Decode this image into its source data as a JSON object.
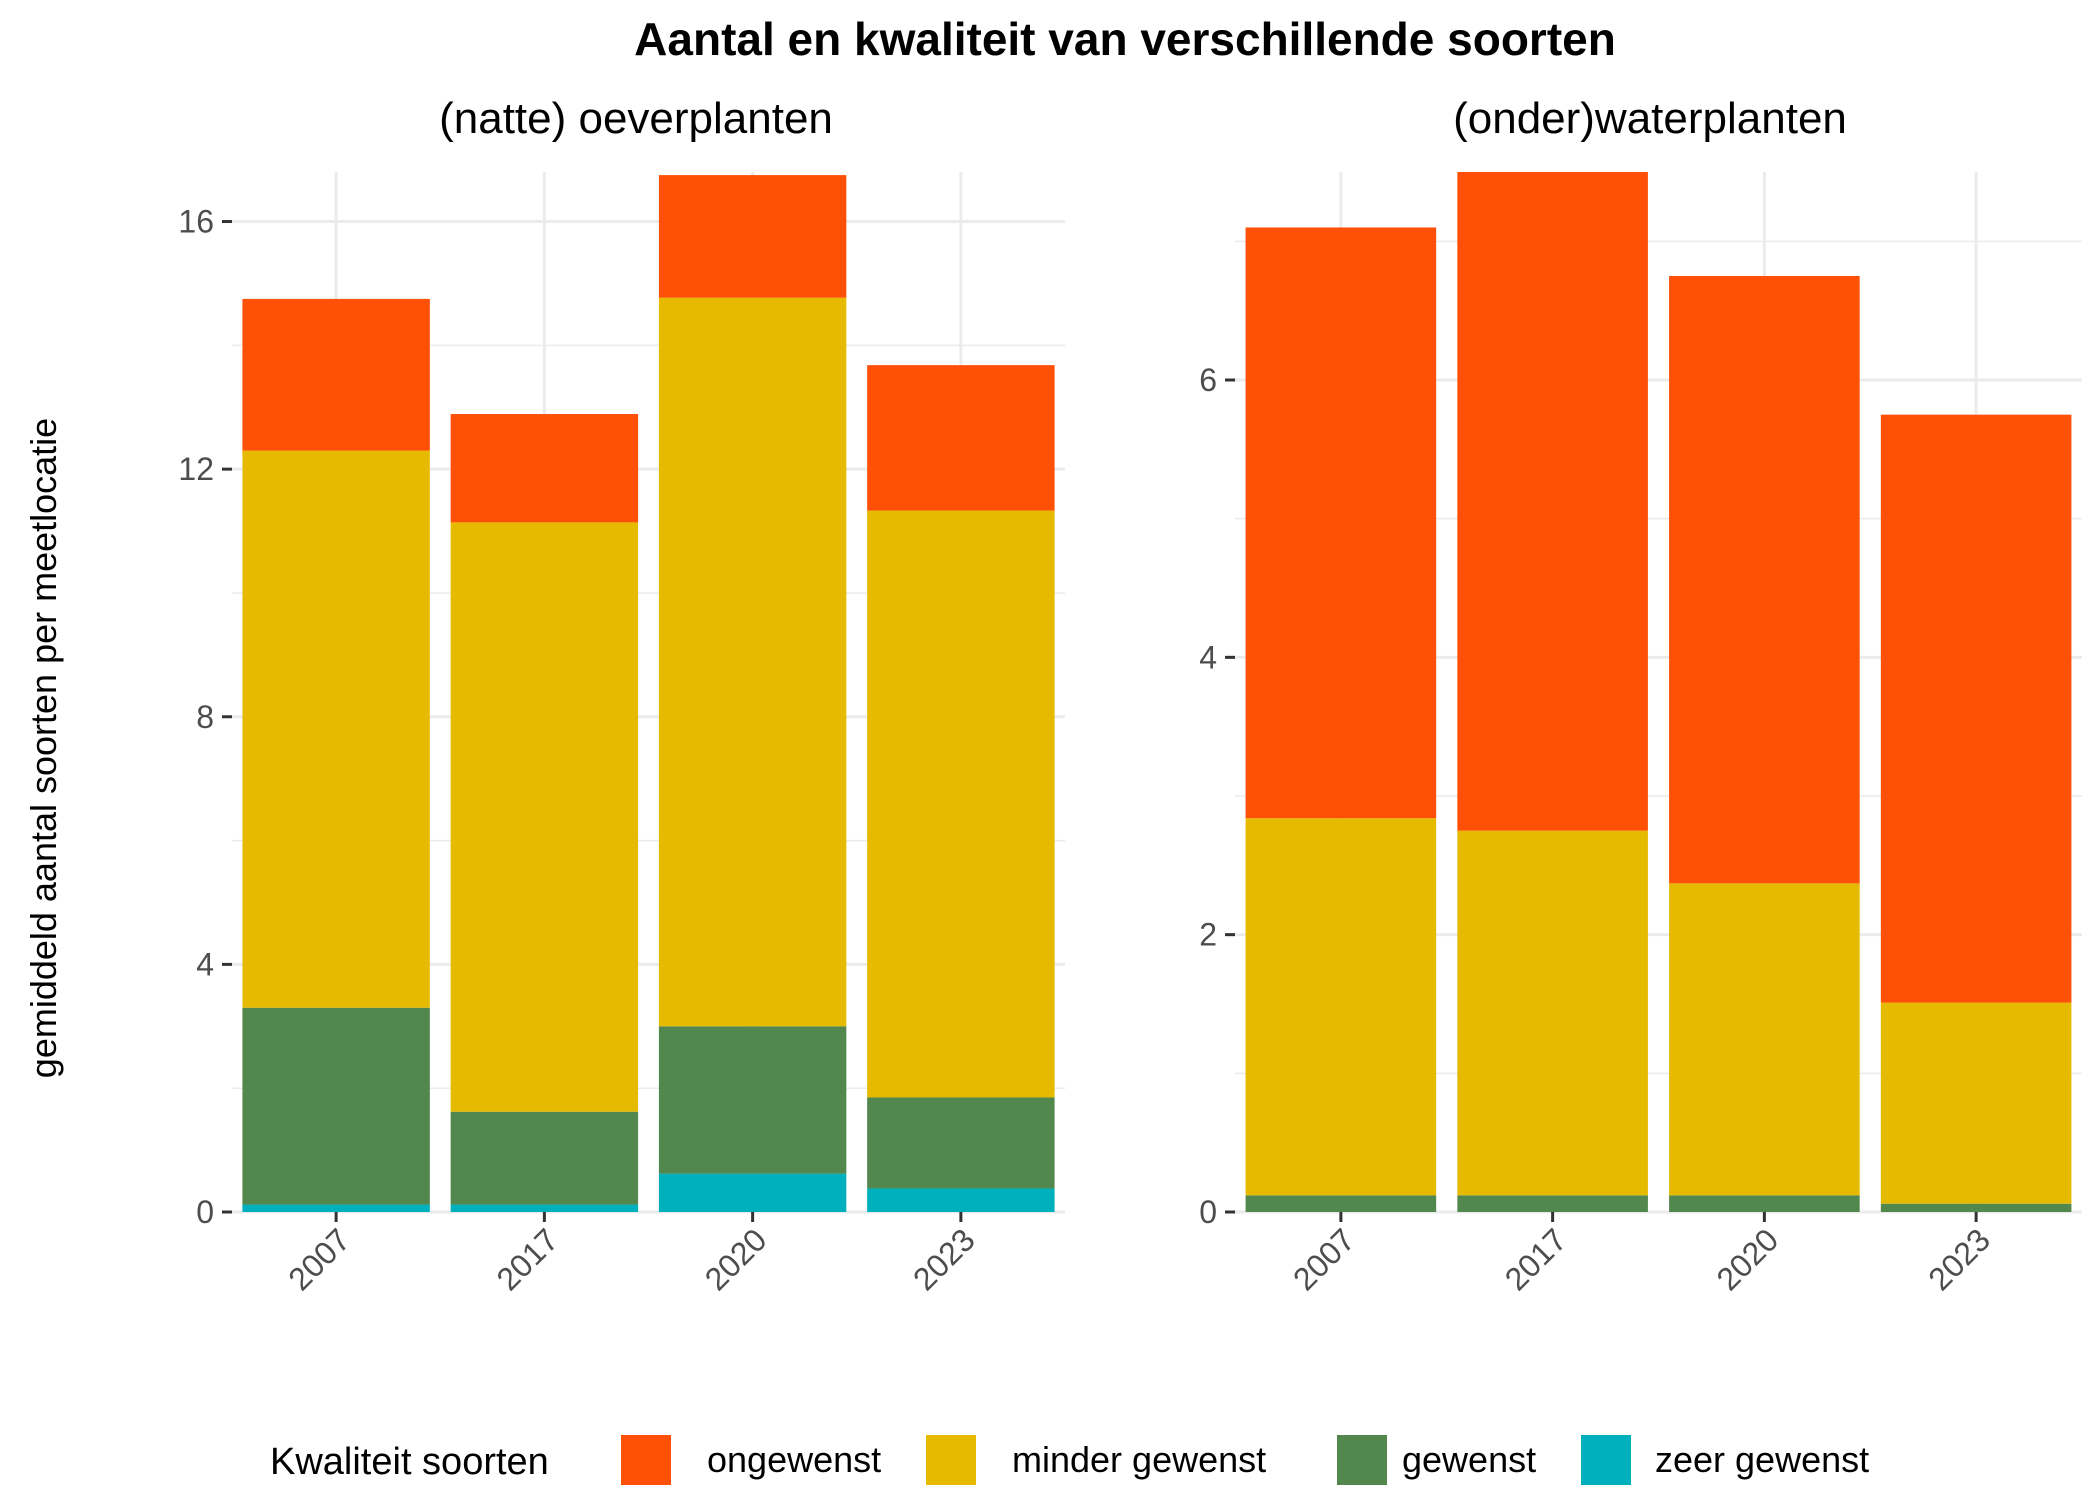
{
  "title": "Aantal en kwaliteit van verschillende soorten",
  "ylabel": "gemiddeld aantal soorten per meetlocatie",
  "legend": {
    "title": "Kwaliteit soorten",
    "position": "bottom",
    "items": [
      {
        "label": "ongewenst",
        "color": "#FF5008"
      },
      {
        "label": "minder gewenst",
        "color": "#E5BA00"
      },
      {
        "label": "gewenst",
        "color": "#52874E"
      },
      {
        "label": "zeer gewenst",
        "color": "#00B0BD"
      }
    ]
  },
  "chart_data": [
    {
      "type": "bar",
      "stacked": true,
      "title": "(natte) oeverplanten",
      "categories": [
        "2007",
        "2017",
        "2020",
        "2023"
      ],
      "ylim": [
        0,
        16.8
      ],
      "yticks": [
        0,
        4,
        8,
        12,
        16
      ],
      "grid": true,
      "series": [
        {
          "name": "zeer gewenst",
          "values": [
            0.12,
            0.12,
            0.62,
            0.38
          ]
        },
        {
          "name": "gewenst",
          "values": [
            3.18,
            1.5,
            2.38,
            1.47
          ]
        },
        {
          "name": "minder gewenst",
          "values": [
            9.0,
            9.52,
            11.77,
            9.48
          ]
        },
        {
          "name": "ongewenst",
          "values": [
            2.45,
            1.75,
            1.98,
            2.35
          ]
        }
      ]
    },
    {
      "type": "bar",
      "stacked": true,
      "title": "(onder)waterplanten",
      "categories": [
        "2007",
        "2017",
        "2020",
        "2023"
      ],
      "ylim": [
        0,
        7.5
      ],
      "yticks": [
        0,
        2,
        4,
        6
      ],
      "grid": true,
      "series": [
        {
          "name": "zeer gewenst",
          "values": [
            0,
            0,
            0,
            0
          ]
        },
        {
          "name": "gewenst",
          "values": [
            0.12,
            0.12,
            0.12,
            0.06
          ]
        },
        {
          "name": "minder gewenst",
          "values": [
            2.72,
            2.63,
            2.25,
            1.45
          ]
        },
        {
          "name": "ongewenst",
          "values": [
            4.26,
            4.75,
            4.38,
            4.24
          ]
        }
      ]
    }
  ]
}
